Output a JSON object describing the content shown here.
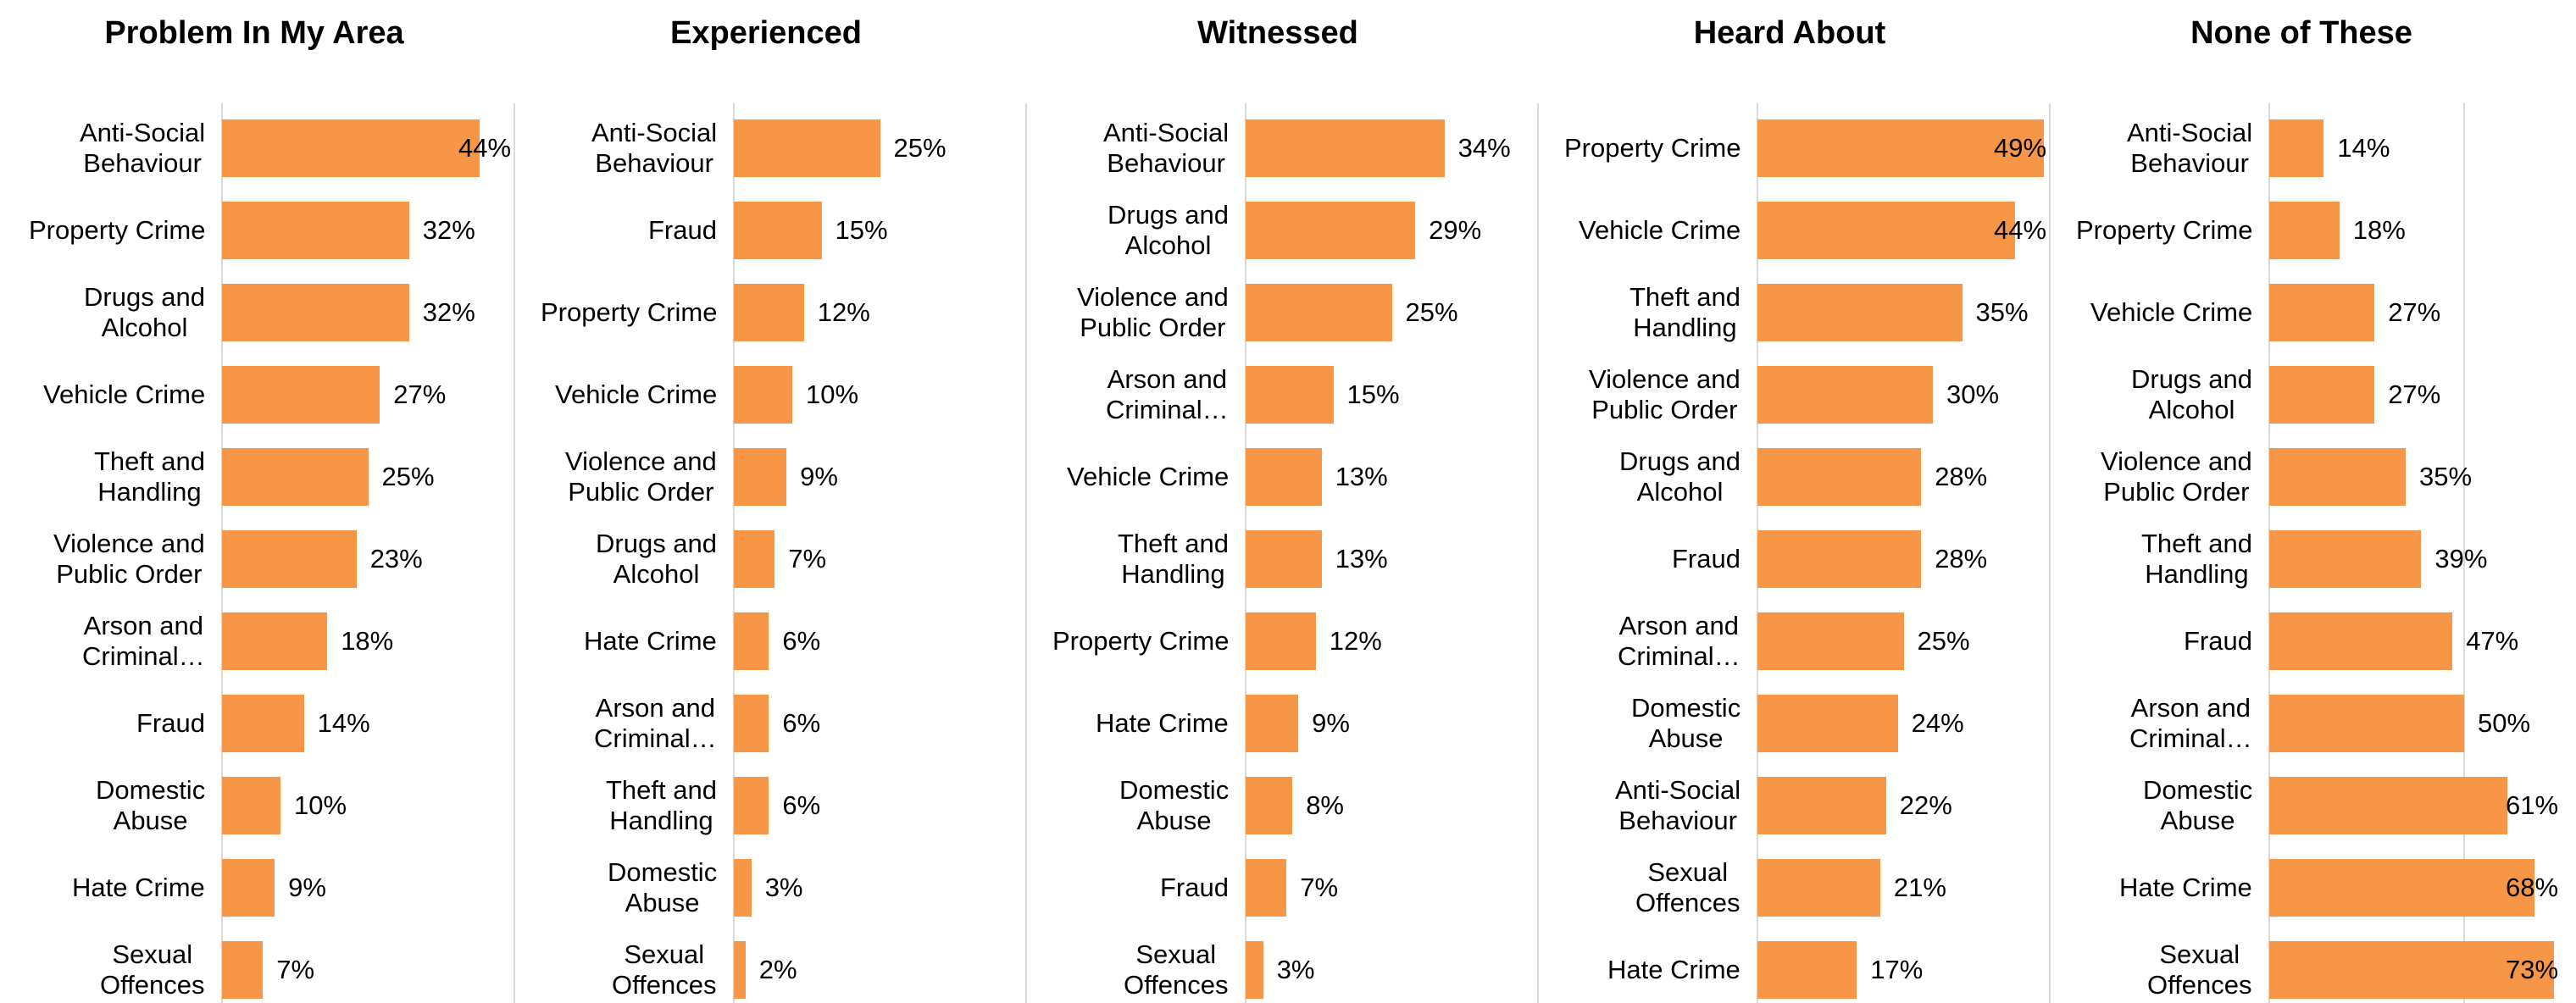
{
  "chart_data": [
    {
      "type": "bar",
      "orientation": "horizontal",
      "title": "Problem In My Area",
      "color": "#f79646",
      "categories": [
        "Anti-Social\nBehaviour",
        "Property Crime",
        "Drugs and\nAlcohol",
        "Vehicle Crime",
        "Theft and\nHandling",
        "Violence and\nPublic Order",
        "Arson and\nCriminal…",
        "Fraud",
        "Domestic\nAbuse",
        "Hate Crime",
        "Sexual\nOffences"
      ],
      "values": [
        44,
        32,
        32,
        27,
        25,
        23,
        18,
        14,
        10,
        9,
        7
      ],
      "value_labels": [
        "44%",
        "32%",
        "32%",
        "27%",
        "25%",
        "23%",
        "18%",
        "14%",
        "10%",
        "9%",
        "7%"
      ],
      "xlim": [
        0,
        50
      ],
      "xticks": [
        0,
        50
      ],
      "show_tick_labels": false,
      "grid": true
    },
    {
      "type": "bar",
      "orientation": "horizontal",
      "title": "Experienced",
      "color": "#f79646",
      "categories": [
        "Anti-Social\nBehaviour",
        "Fraud",
        "Property Crime",
        "Vehicle Crime",
        "Violence and\nPublic Order",
        "Drugs and\nAlcohol",
        "Hate Crime",
        "Arson and\nCriminal…",
        "Theft and\nHandling",
        "Domestic\nAbuse",
        "Sexual\nOffences"
      ],
      "values": [
        25,
        15,
        12,
        10,
        9,
        7,
        6,
        6,
        6,
        3,
        2
      ],
      "value_labels": [
        "25%",
        "15%",
        "12%",
        "10%",
        "9%",
        "7%",
        "6%",
        "6%",
        "6%",
        "3%",
        "2%"
      ],
      "xlim": [
        0,
        50
      ],
      "xticks": [
        0,
        50
      ],
      "show_tick_labels": false,
      "grid": true
    },
    {
      "type": "bar",
      "orientation": "horizontal",
      "title": "Witnessed",
      "color": "#f79646",
      "categories": [
        "Anti-Social\nBehaviour",
        "Drugs and\nAlcohol",
        "Violence and\nPublic Order",
        "Arson and\nCriminal…",
        "Vehicle Crime",
        "Theft and\nHandling",
        "Property Crime",
        "Hate Crime",
        "Domestic\nAbuse",
        "Fraud",
        "Sexual\nOffences"
      ],
      "values": [
        34,
        29,
        25,
        15,
        13,
        13,
        12,
        9,
        8,
        7,
        3
      ],
      "value_labels": [
        "34%",
        "29%",
        "25%",
        "15%",
        "13%",
        "13%",
        "12%",
        "9%",
        "8%",
        "7%",
        "3%"
      ],
      "xlim": [
        0,
        50
      ],
      "xticks": [
        0,
        50
      ],
      "show_tick_labels": false,
      "grid": true
    },
    {
      "type": "bar",
      "orientation": "horizontal",
      "title": "Heard About",
      "color": "#f79646",
      "categories": [
        "Property Crime",
        "Vehicle Crime",
        "Theft and\nHandling",
        "Violence and\nPublic Order",
        "Drugs and\nAlcohol",
        "Fraud",
        "Arson and\nCriminal…",
        "Domestic\nAbuse",
        "Anti-Social\nBehaviour",
        "Sexual\nOffences",
        "Hate Crime"
      ],
      "values": [
        49,
        44,
        35,
        30,
        28,
        28,
        25,
        24,
        22,
        21,
        17
      ],
      "value_labels": [
        "49%",
        "44%",
        "35%",
        "30%",
        "28%",
        "28%",
        "25%",
        "24%",
        "22%",
        "21%",
        "17%"
      ],
      "xlim": [
        0,
        50
      ],
      "xticks": [
        0,
        50
      ],
      "show_tick_labels": false,
      "grid": true
    },
    {
      "type": "bar",
      "orientation": "horizontal",
      "title": "None of These",
      "color": "#f79646",
      "categories": [
        "Anti-Social\nBehaviour",
        "Property Crime",
        "Vehicle Crime",
        "Drugs and\nAlcohol",
        "Violence and\nPublic Order",
        "Theft and\nHandling",
        "Fraud",
        "Arson and\nCriminal…",
        "Domestic\nAbuse",
        "Hate Crime",
        "Sexual\nOffences"
      ],
      "values": [
        14,
        18,
        27,
        27,
        35,
        39,
        47,
        50,
        61,
        68,
        73
      ],
      "value_labels": [
        "14%",
        "18%",
        "27%",
        "27%",
        "35%",
        "39%",
        "47%",
        "50%",
        "61%",
        "68%",
        "73%"
      ],
      "xlim": [
        0,
        75
      ],
      "xticks": [
        0,
        50
      ],
      "show_tick_labels": false,
      "grid": true
    }
  ]
}
